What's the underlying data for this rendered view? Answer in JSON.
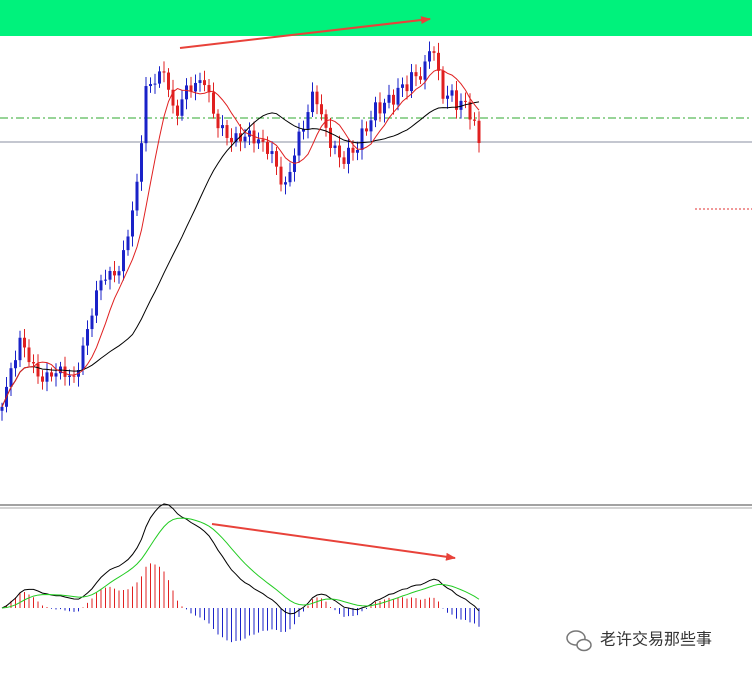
{
  "watermark": {
    "text": "老许交易那些事"
  }
}
